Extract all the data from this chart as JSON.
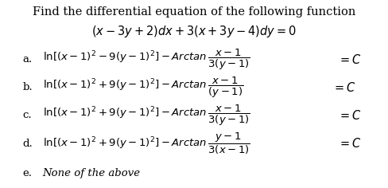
{
  "title_line1": "Find the differential equation of the following function",
  "title_line2": "$(x - 3y + 2)dx + 3(x + 3y - 4)dy = 0$",
  "background_color": "#ffffff",
  "text_color": "#000000",
  "options": [
    {
      "label": "a.",
      "main": "$\\mathrm{ln}[(x-1)^2 - 9(y-1)^2] - Arctan\\,\\dfrac{x-1}{3(y-1)}$",
      "suffix": "$= C$",
      "is_italic_e": false
    },
    {
      "label": "b.",
      "main": "$\\mathrm{ln}[(x-1)^2 + 9(y-1)^2] - Arctan\\,\\dfrac{x-1}{(y-1)}$",
      "suffix": "$= C$",
      "is_italic_e": false
    },
    {
      "label": "c.",
      "main": "$\\mathrm{ln}[(x-1)^2 + 9(y-1)^2] - Arctan\\,\\dfrac{x-1}{3(y-1)}$",
      "suffix": "$= C$",
      "is_italic_e": false
    },
    {
      "label": "d.",
      "main": "$\\mathrm{ln}[(x-1)^2 + 9(y-1)^2] - Arctan\\,\\dfrac{y-1}{3(x-1)}$",
      "suffix": "$= C$",
      "is_italic_e": false
    },
    {
      "label": "e.",
      "main": "None of the above",
      "suffix": null,
      "is_italic_e": true
    }
  ],
  "title_fontsize": 10.5,
  "option_fontsize": 9.5,
  "suffix_fontsize": 10.5
}
